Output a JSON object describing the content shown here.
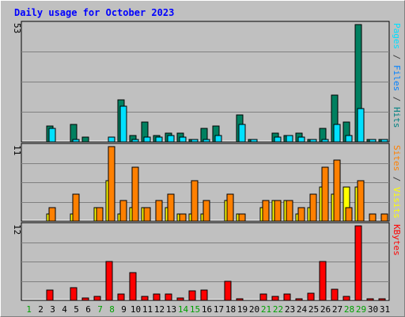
{
  "chart_data": {
    "type": "bar",
    "title": "Daily usage for October 2023",
    "categories": [
      "1",
      "2",
      "3",
      "4",
      "5",
      "6",
      "7",
      "8",
      "9",
      "10",
      "11",
      "12",
      "13",
      "14",
      "15",
      "16",
      "17",
      "18",
      "19",
      "20",
      "21",
      "22",
      "23",
      "24",
      "25",
      "26",
      "27",
      "28",
      "29",
      "30",
      "31"
    ],
    "weekend_days": [
      "1",
      "7",
      "8",
      "14",
      "15",
      "21",
      "22",
      "28",
      "29"
    ],
    "panels": [
      {
        "name": "hits-files-pages",
        "max_label": "53",
        "ymax": 53,
        "legend": [
          {
            "text": "Pages",
            "color": "#00e0ff"
          },
          {
            "text": " / ",
            "color": "#404040"
          },
          {
            "text": "Files",
            "color": "#0080ff"
          },
          {
            "text": " / ",
            "color": "#404040"
          },
          {
            "text": "Hits",
            "color": "#008080"
          }
        ],
        "series": [
          {
            "name": "Hits",
            "color": "#008060",
            "offset": 0,
            "values": [
              0,
              0,
              7,
              0,
              8,
              2,
              0,
              0,
              19,
              3,
              9,
              3,
              4,
              4,
              1,
              6,
              7,
              0,
              12,
              1,
              0,
              4,
              3,
              4,
              1,
              6,
              21,
              9,
              53,
              1,
              1
            ]
          },
          {
            "name": "Pages",
            "color": "#00e0ff",
            "offset": 1,
            "values": [
              0,
              0,
              6,
              0,
              1,
              0,
              0,
              2,
              16,
              1,
              2,
              2,
              3,
              2,
              1,
              1,
              3,
              0,
              8,
              1,
              0,
              2,
              3,
              2,
              1,
              1,
              8,
              3,
              15,
              1,
              1
            ]
          }
        ]
      },
      {
        "name": "visits-sites",
        "max_label": "11",
        "ymax": 11,
        "legend": [
          {
            "text": "Sites",
            "color": "#ff8000"
          },
          {
            "text": " / ",
            "color": "#404040"
          },
          {
            "text": "Visits",
            "color": "#ffff00"
          }
        ],
        "series": [
          {
            "name": "Visits",
            "color": "#ffff00",
            "offset": 0,
            "values": [
              0,
              0,
              1,
              0,
              1,
              0,
              2,
              6,
              1,
              2,
              2,
              0,
              2,
              1,
              1,
              1,
              0,
              3,
              1,
              0,
              2,
              3,
              3,
              1,
              2,
              5,
              4,
              5,
              5,
              0,
              0
            ]
          },
          {
            "name": "Sites",
            "color": "#ff8000",
            "offset": 1,
            "values": [
              0,
              0,
              2,
              0,
              4,
              0,
              2,
              11,
              3,
              8,
              2,
              3,
              4,
              1,
              6,
              3,
              0,
              4,
              1,
              0,
              3,
              3,
              3,
              2,
              4,
              8,
              9,
              2,
              6,
              1,
              1
            ]
          }
        ]
      },
      {
        "name": "kbytes",
        "max_label": "12",
        "ymax": 12,
        "legend": [
          {
            "text": "KBytes",
            "color": "#ff0000"
          }
        ],
        "series": [
          {
            "name": "KBytes",
            "color": "#ff0000",
            "offset": 0,
            "values": [
              0,
              0,
              1.6,
              0,
              2,
              0.4,
              0.6,
              6.2,
              1,
              4.5,
              0.6,
              1,
              1,
              0.4,
              1.5,
              1.6,
              0,
              3,
              0.3,
              0,
              1,
              0.7,
              1,
              0.3,
              1.1,
              6.2,
              1.8,
              0.6,
              12,
              0.3,
              0.3
            ]
          }
        ]
      }
    ]
  }
}
